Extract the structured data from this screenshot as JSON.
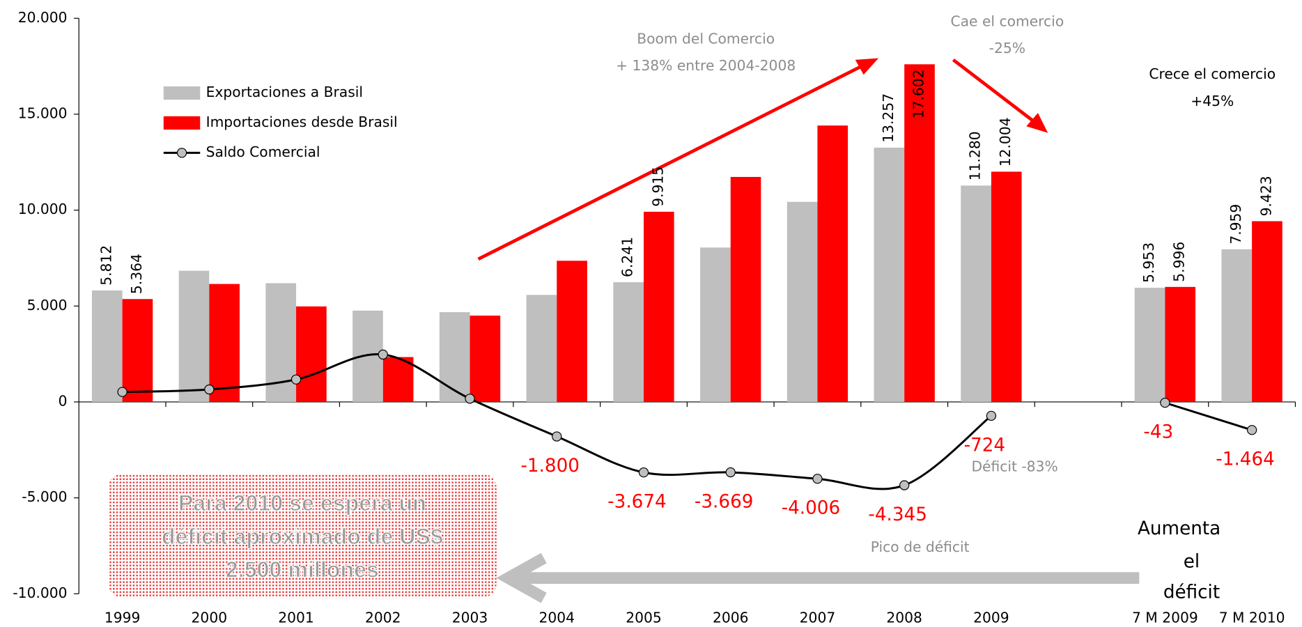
{
  "chart_data": {
    "type": "bar",
    "categories": [
      "1999",
      "2000",
      "2001",
      "2002",
      "2003",
      "2004",
      "2005",
      "2006",
      "2007",
      "2008",
      "2009",
      null,
      "7 M 2009",
      "7 M 2010"
    ],
    "series": [
      {
        "name": "Exportaciones a Brasil",
        "color": "#bfbfbf",
        "type": "bar",
        "values": [
          5812,
          6840,
          6190,
          4760,
          4680,
          5580,
          6241,
          8050,
          10430,
          13257,
          11280,
          null,
          5953,
          7959
        ],
        "value_labels": [
          "5.812",
          null,
          null,
          null,
          null,
          null,
          "6.241",
          null,
          null,
          "13.257",
          "11.280",
          null,
          "5.953",
          "7.959"
        ]
      },
      {
        "name": "Importaciones desde Brasil",
        "color": "#ff0000",
        "type": "bar",
        "values": [
          5364,
          6150,
          4980,
          2340,
          4500,
          7360,
          9915,
          11730,
          14410,
          17602,
          12004,
          null,
          5996,
          9423
        ],
        "value_labels": [
          "5.364",
          null,
          null,
          null,
          null,
          null,
          "9.915",
          null,
          null,
          "17.602",
          "12.004",
          null,
          "5.996",
          "9.423"
        ]
      },
      {
        "name": "Saldo Comercial",
        "color": "#000000",
        "marker_color": "#bfbfbf",
        "type": "line",
        "values": [
          520,
          650,
          1170,
          2470,
          170,
          -1800,
          -3674,
          -3669,
          -4006,
          -4345,
          -724,
          null,
          -43,
          -1464
        ],
        "value_labels": [
          null,
          null,
          null,
          null,
          null,
          "-1.800",
          "-3.674",
          "-3.669",
          "-4.006",
          "-4.345",
          "-724",
          null,
          "-43",
          "-1.464"
        ]
      }
    ],
    "ylim": [
      -10000,
      20000
    ],
    "yticks": [
      {
        "value": -10000,
        "label": "-10.000"
      },
      {
        "value": -5000,
        "label": "-5.000"
      },
      0,
      {
        "value": 5000,
        "label": "5.000"
      },
      {
        "value": 10000,
        "label": "10.000"
      },
      {
        "value": 15000,
        "label": "15.000"
      },
      {
        "value": 20000,
        "label": "20.000"
      }
    ],
    "annotations": [
      "Boom del Comercio",
      "+ 138% entre 2004-2008",
      "Cae el comercio",
      "-25%",
      "Crece el comercio",
      "+45%",
      "Déficit -83%",
      "Pico de déficit"
    ],
    "note_box": [
      "Para 2010 se espera un",
      "déficit aproximado de US$",
      "2.500 millones"
    ],
    "note_right": [
      "Aumenta",
      "el",
      "déficit"
    ]
  }
}
